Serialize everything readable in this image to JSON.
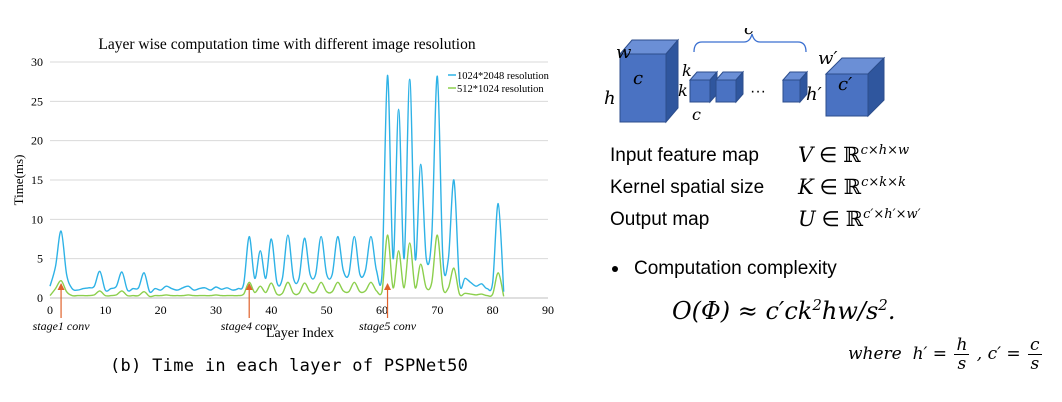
{
  "chart_data": {
    "type": "line",
    "title": "Layer wise computation time with different image resolution",
    "xlabel": "Layer Index",
    "ylabel": "Time(ms)",
    "xlim": [
      0,
      90
    ],
    "ylim": [
      0,
      30
    ],
    "xticks": [
      0,
      10,
      20,
      30,
      40,
      50,
      60,
      70,
      80,
      90
    ],
    "yticks": [
      0,
      5,
      10,
      15,
      20,
      25,
      30
    ],
    "grid": "horizontal",
    "legend": "top-right",
    "series": [
      {
        "name": "1024*2048 resolution",
        "color": "#2eb2e6",
        "x": [
          0,
          1,
          2,
          3,
          4,
          5,
          6,
          7,
          8,
          9,
          10,
          11,
          12,
          13,
          14,
          15,
          16,
          17,
          18,
          19,
          20,
          21,
          22,
          23,
          24,
          25,
          26,
          27,
          28,
          29,
          30,
          31,
          32,
          33,
          34,
          35,
          36,
          37,
          38,
          39,
          40,
          41,
          42,
          43,
          44,
          45,
          46,
          47,
          48,
          49,
          50,
          51,
          52,
          53,
          54,
          55,
          56,
          57,
          58,
          59,
          60,
          61,
          62,
          63,
          64,
          65,
          66,
          67,
          68,
          69,
          70,
          71,
          72,
          73,
          74,
          75,
          76,
          77,
          78,
          79,
          80,
          81,
          82
        ],
        "y": [
          1.5,
          4,
          8.5,
          3,
          1.2,
          1,
          1.2,
          1.3,
          1.5,
          3.4,
          1,
          1.2,
          1.5,
          3.3,
          1,
          1.2,
          1.3,
          3.2,
          0.8,
          1.2,
          1,
          1.5,
          1.2,
          1,
          1.3,
          1.5,
          1,
          1.2,
          1.3,
          1,
          1.4,
          1.1,
          1.3,
          1,
          1.2,
          1.8,
          7.8,
          2.5,
          6,
          2.5,
          7.5,
          2,
          2.5,
          8,
          2.5,
          2.5,
          7.6,
          3,
          3,
          7.8,
          3,
          3,
          7.8,
          3.5,
          3,
          7.8,
          3,
          3.5,
          7.8,
          3.5,
          3,
          28.3,
          5,
          24,
          5,
          27.8,
          5,
          17,
          5,
          8,
          28.2,
          5,
          5,
          15,
          2,
          2.5,
          2,
          1.5,
          1.8,
          1.2,
          2,
          12,
          0.8
        ]
      },
      {
        "name": "512*1024 resolution",
        "color": "#8ccf4d",
        "x": [
          0,
          1,
          2,
          3,
          4,
          5,
          6,
          7,
          8,
          9,
          10,
          11,
          12,
          13,
          14,
          15,
          16,
          17,
          18,
          19,
          20,
          21,
          22,
          23,
          24,
          25,
          26,
          27,
          28,
          29,
          30,
          31,
          32,
          33,
          34,
          35,
          36,
          37,
          38,
          39,
          40,
          41,
          42,
          43,
          44,
          45,
          46,
          47,
          48,
          49,
          50,
          51,
          52,
          53,
          54,
          55,
          56,
          57,
          58,
          59,
          60,
          61,
          62,
          63,
          64,
          65,
          66,
          67,
          68,
          69,
          70,
          71,
          72,
          73,
          74,
          75,
          76,
          77,
          78,
          79,
          80,
          81,
          82
        ],
        "y": [
          0.3,
          1.2,
          2.2,
          0.8,
          0.3,
          0.3,
          0.3,
          0.3,
          0.4,
          0.9,
          0.3,
          0.3,
          0.4,
          0.9,
          0.3,
          0.3,
          0.3,
          0.8,
          0.2,
          0.3,
          0.3,
          0.4,
          0.3,
          0.3,
          0.3,
          0.4,
          0.3,
          0.3,
          0.3,
          0.3,
          0.4,
          0.3,
          0.3,
          0.3,
          0.3,
          0.5,
          2,
          0.7,
          1.5,
          0.7,
          1.9,
          0.5,
          0.6,
          2,
          0.6,
          0.6,
          1.9,
          0.8,
          0.8,
          2,
          0.8,
          0.8,
          2,
          0.9,
          0.8,
          2,
          0.8,
          0.9,
          2,
          0.9,
          0.8,
          8,
          1.3,
          6,
          1.3,
          7,
          1.3,
          4.3,
          1.3,
          2,
          8,
          1.3,
          1.3,
          3.8,
          0.5,
          0.6,
          0.5,
          0.4,
          0.5,
          0.3,
          0.5,
          3.2,
          0.2
        ]
      }
    ],
    "annotations": [
      {
        "text": "stage1 conv",
        "x": 2
      },
      {
        "text": "stage4 conv",
        "x": 36
      },
      {
        "text": "stage5 conv",
        "x": 61
      }
    ]
  },
  "caption": "(b) Time in each layer of PSPNet50",
  "diagram": {
    "input_labels": {
      "w": "w",
      "h": "h",
      "c": "c"
    },
    "kernel_labels": {
      "k_top": "k",
      "k_left": "k",
      "c_bottom": "c",
      "dots": "···",
      "cprime": "c′"
    },
    "output_labels": {
      "w": "w′",
      "h": "h′",
      "c": "c′"
    }
  },
  "rows": [
    {
      "label": "Input feature map",
      "sym": "V",
      "set": "ℝ",
      "sup": "c×h×w"
    },
    {
      "label": "Kernel spatial size",
      "sym": "K",
      "set": "ℝ",
      "sup": "c×k×k"
    },
    {
      "label": "Output map",
      "sym": "U",
      "set": "ℝ",
      "sup": "c′×h′×w′"
    }
  ],
  "bullet": "Computation complexity",
  "formula": {
    "lhs": "O(Φ) ≈ c′ck",
    "sq": "2",
    "mid": "hw/s",
    "sq2": "2",
    "end": "."
  },
  "where": {
    "word": "where",
    "hp": "h′ =",
    "h_num": "h",
    "h_den": "s",
    "sep": ",",
    "cp": "c′ =",
    "c_num": "c",
    "c_den": "s"
  }
}
